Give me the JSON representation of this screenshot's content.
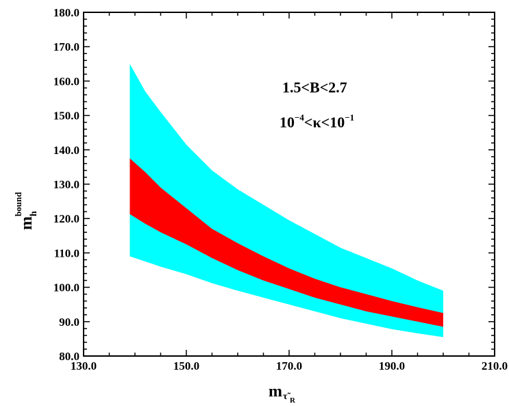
{
  "chart_data": {
    "type": "area",
    "xlim": [
      130,
      210
    ],
    "ylim": [
      80,
      180
    ],
    "x_ticks": [
      "130.0",
      "150.0",
      "170.0",
      "190.0",
      "210.0"
    ],
    "y_ticks": [
      "80.0",
      "90.0",
      "100.0",
      "110.0",
      "120.0",
      "130.0",
      "140.0",
      "150.0",
      "160.0",
      "170.0",
      "180.0"
    ],
    "xlabel": {
      "main": "m",
      "sub": "τ̃",
      "subsub": "R"
    },
    "ylabel": {
      "main": "m",
      "sub": "h",
      "sup": "bound"
    },
    "annotations": {
      "line1": "1.5<B<2.7",
      "line2": {
        "base1": "10",
        "exp1": "−4",
        "middle": "<κ<10",
        "exp2": "−1"
      }
    },
    "colors": {
      "outer_band": "#00ffff",
      "inner_band": "#ff0000"
    },
    "series": [
      {
        "color": "#00ffff",
        "x": [
          139,
          142,
          145,
          150,
          155,
          160,
          165,
          170,
          175,
          180,
          185,
          190,
          195,
          200
        ],
        "upper": [
          165.0,
          157.0,
          151.0,
          141.5,
          134.0,
          128.5,
          124.0,
          119.5,
          115.5,
          111.5,
          108.5,
          105.5,
          102.0,
          99.0
        ],
        "lower": [
          109.0,
          107.5,
          106.0,
          103.8,
          101.2,
          99.0,
          97.0,
          95.0,
          93.0,
          91.0,
          89.4,
          87.8,
          86.6,
          85.5
        ]
      },
      {
        "color": "#ff0000",
        "x": [
          139,
          142,
          145,
          150,
          155,
          160,
          165,
          170,
          175,
          180,
          185,
          190,
          195,
          200
        ],
        "upper": [
          137.5,
          133.5,
          129.0,
          123.0,
          117.0,
          112.8,
          109.0,
          105.5,
          102.5,
          100.0,
          98.0,
          96.0,
          94.2,
          92.5
        ],
        "lower": [
          121.3,
          118.5,
          116.0,
          112.5,
          108.5,
          105.0,
          102.0,
          99.5,
          97.0,
          95.0,
          93.0,
          91.5,
          90.0,
          88.5
        ]
      }
    ]
  }
}
